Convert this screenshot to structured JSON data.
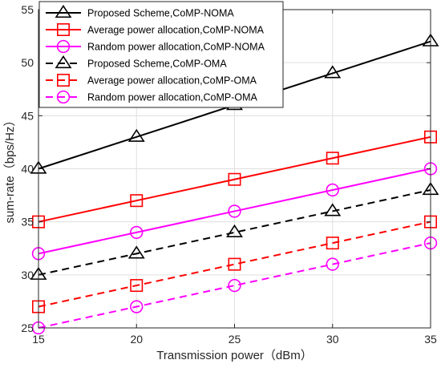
{
  "chart_data": {
    "type": "line",
    "xlabel": "Transmission power（dBm）",
    "ylabel": "sum-rate（bps/Hz）",
    "xlim": [
      15,
      35
    ],
    "ylim": [
      25,
      55
    ],
    "xticks": [
      15,
      20,
      25,
      30,
      35
    ],
    "yticks": [
      25,
      30,
      35,
      40,
      45,
      50,
      55
    ],
    "grid": true,
    "legend_position": "top-left",
    "x": [
      15,
      20,
      25,
      30,
      35
    ],
    "series": [
      {
        "name": "Proposed Scheme,CoMP-NOMA",
        "values": [
          40,
          43,
          46,
          49,
          52
        ],
        "color": "#000000",
        "marker": "triangle",
        "dash": "solid"
      },
      {
        "name": "Average power allocation,CoMP-NOMA",
        "values": [
          35,
          37,
          39,
          41,
          43
        ],
        "color": "#ff0000",
        "marker": "square",
        "dash": "solid"
      },
      {
        "name": "Random power allocation,CoMP-NOMA",
        "values": [
          32,
          34,
          36,
          38,
          40
        ],
        "color": "#ff00ff",
        "marker": "circle",
        "dash": "solid"
      },
      {
        "name": "Proposed Scheme,CoMP-OMA",
        "values": [
          30,
          32,
          34,
          36,
          38
        ],
        "color": "#000000",
        "marker": "triangle",
        "dash": "dashed"
      },
      {
        "name": "Average power allocation,CoMP-OMA",
        "values": [
          27,
          29,
          31,
          33,
          35
        ],
        "color": "#ff0000",
        "marker": "square",
        "dash": "dashed"
      },
      {
        "name": "Random power allocation,CoMP-OMA",
        "values": [
          25,
          27,
          29,
          31,
          33
        ],
        "color": "#ff00ff",
        "marker": "circle",
        "dash": "dashed"
      }
    ]
  }
}
